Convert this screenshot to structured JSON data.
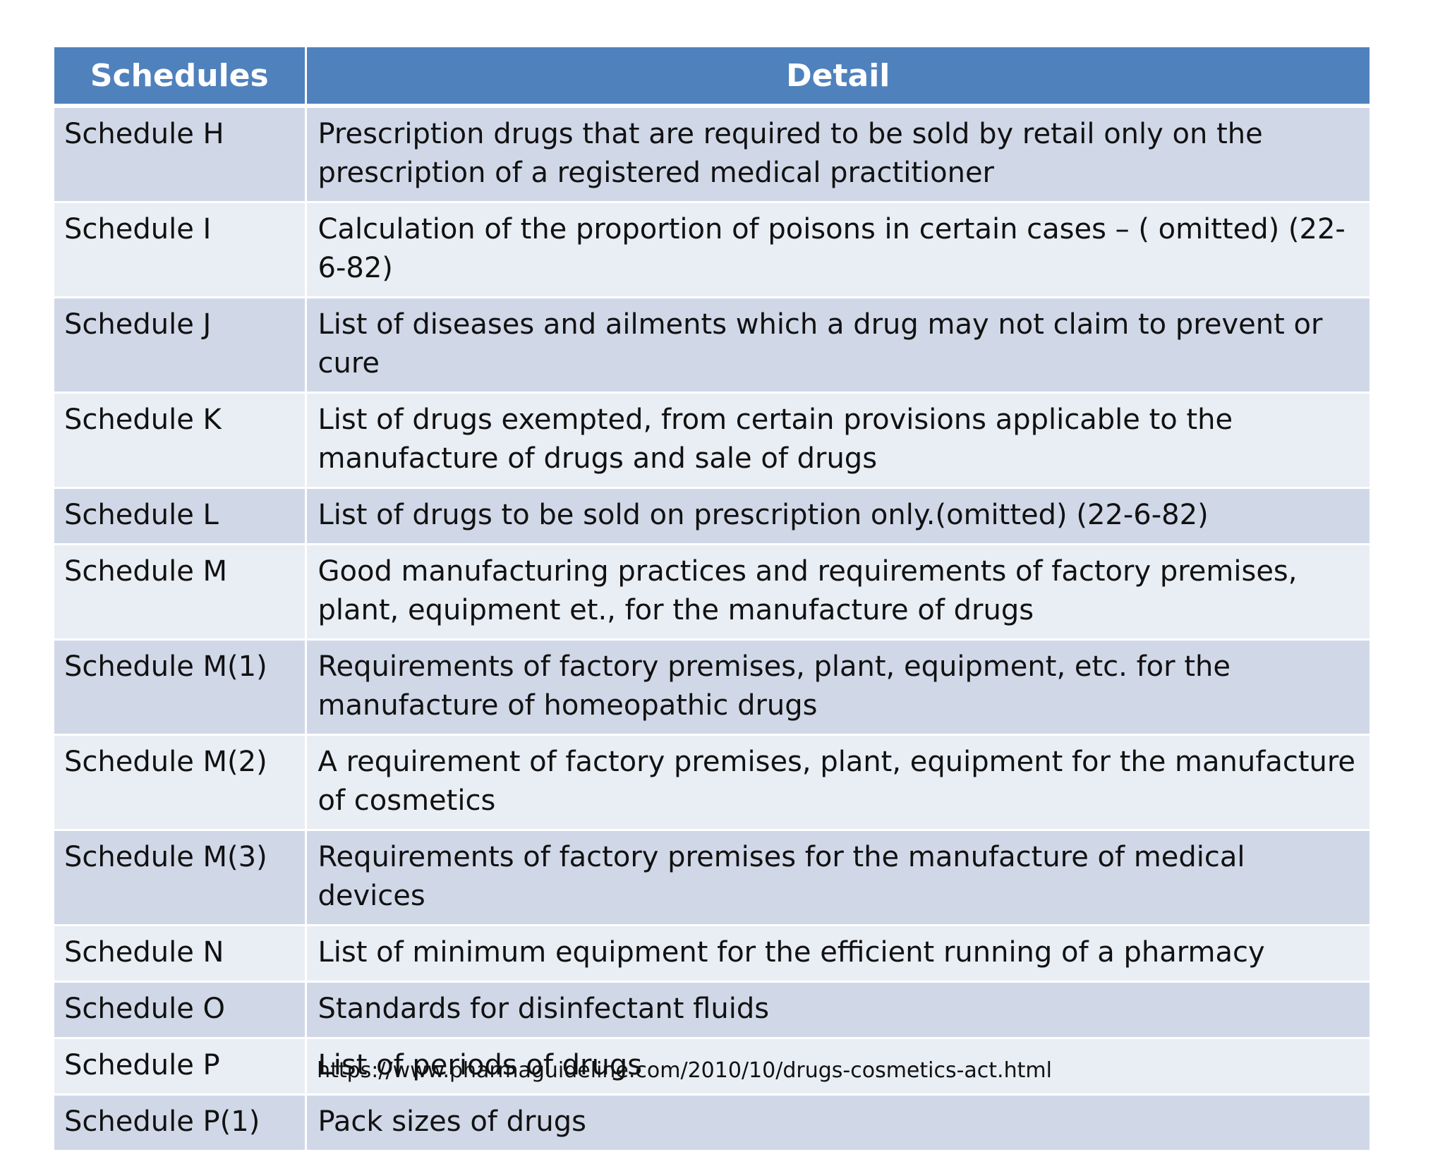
{
  "table": {
    "headers": [
      "Schedules",
      "Detail"
    ],
    "rows": [
      {
        "schedule": "Schedule H",
        "detail": "Prescription drugs that are required to be sold by retail only on the prescription of a registered medical practitioner"
      },
      {
        "schedule": "Schedule I",
        "detail": "Calculation of the proportion of poisons in certain cases – ( omitted) (22-6-82)"
      },
      {
        "schedule": "Schedule J",
        "detail": "List of diseases and ailments which a drug may not claim to prevent or cure"
      },
      {
        "schedule": "Schedule K",
        "detail": "List of drugs exempted, from certain provisions applicable to the manufacture of drugs and sale of drugs"
      },
      {
        "schedule": "Schedule L",
        "detail": "List of drugs to be sold on prescription only.(omitted) (22-6-82)"
      },
      {
        "schedule": "Schedule M",
        "detail": "Good manufacturing practices and requirements of factory premises, plant, equipment et., for the manufacture of drugs"
      },
      {
        "schedule": "Schedule M(1)",
        "detail": "Requirements of factory premises, plant, equipment, etc. for the manufacture of homeopathic drugs"
      },
      {
        "schedule": "Schedule M(2)",
        "detail": "A requirement of factory premises, plant, equipment for the manufacture of cosmetics"
      },
      {
        "schedule": "Schedule M(3)",
        "detail": "Requirements of factory premises for the manufacture of medical devices"
      },
      {
        "schedule": "Schedule N",
        "detail": "List of minimum equipment for the efficient running of a pharmacy"
      },
      {
        "schedule": "Schedule O",
        "detail": "Standards for disinfectant fluids"
      },
      {
        "schedule": "Schedule P",
        "detail": "List of periods of drugs"
      },
      {
        "schedule": "Schedule P(1)",
        "detail": "Pack sizes of drugs"
      }
    ]
  },
  "source_url": "https://www.pharmaguideline.com/2010/10/drugs-cosmetics-act.html",
  "colors": {
    "header_bg": "#4f81bd",
    "row_odd_bg": "#d0d8e8",
    "row_even_bg": "#e9edf4"
  }
}
